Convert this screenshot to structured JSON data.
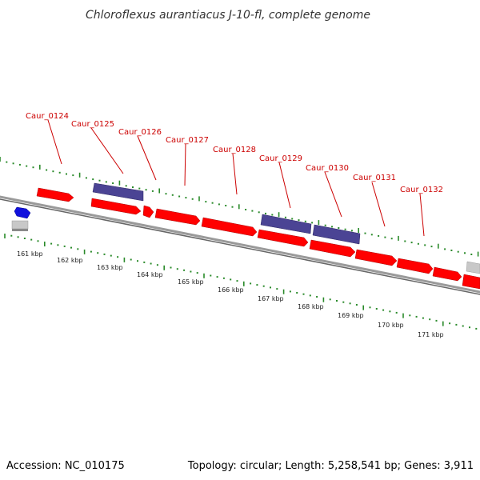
{
  "title": "Chloroflexus aurantiacus J-10-fl, complete genome",
  "footer": {
    "accession": "Accession: NC_010175",
    "summary": "Topology: circular; Length: 5,258,541 bp; Genes: 3,911"
  },
  "colors": {
    "gene": "#ff0000",
    "gene_alt": "#4b4494",
    "small_feature": "#1111dd",
    "other_feature": "#c8c8c8",
    "backbone": "#808080",
    "tick": "#2a8a2a",
    "label": "#cc0000"
  },
  "gene_labels": [
    "Caur_0124",
    "Caur_0125",
    "Caur_0126",
    "Caur_0127",
    "Caur_0128",
    "Caur_0129",
    "Caur_0130",
    "Caur_0131",
    "Caur_0132"
  ],
  "scale_labels": [
    "161 kbp",
    "162 kbp",
    "163 kbp",
    "164 kbp",
    "165 kbp",
    "166 kbp",
    "167 kbp",
    "168 kbp",
    "169 kbp",
    "170 kbp",
    "171 kbp"
  ]
}
